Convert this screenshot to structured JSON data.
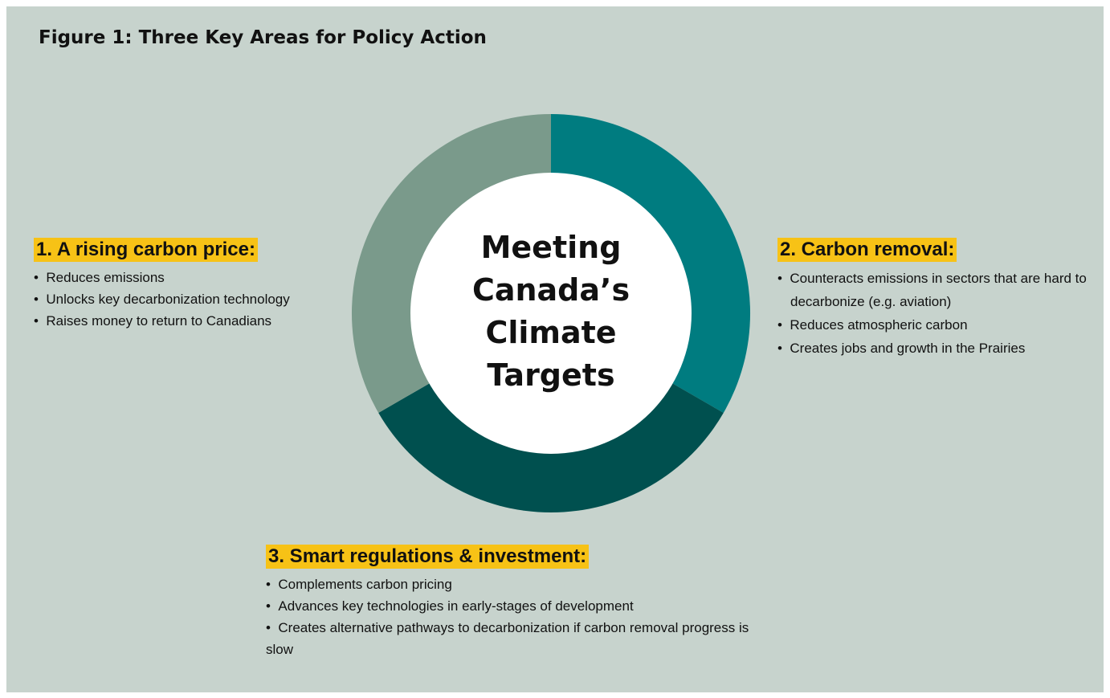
{
  "title": "Figure 1: Three Key Areas for Policy Action",
  "center_text": [
    "Meeting",
    "Canada’s",
    "Climate",
    "Targets"
  ],
  "sections": [
    {
      "heading": "1. A rising carbon price:",
      "bullets": [
        "Reduces emissions",
        "Unlocks key decarbonization technology",
        "Raises money to return to Canadians"
      ]
    },
    {
      "heading": "2. Carbon removal:",
      "bullets": [
        "Counteracts emissions in sectors that are hard to decarbonize (e.g. aviation)",
        "Reduces atmospheric carbon",
        "Creates jobs and growth in the Prairies"
      ]
    },
    {
      "heading": "3. Smart regulations & investment:",
      "bullets": [
        "Complements carbon pricing",
        "Advances key technologies in early-stages of development",
        "Creates alternative pathways to decarbonization if carbon removal progress is slow"
      ]
    }
  ]
}
